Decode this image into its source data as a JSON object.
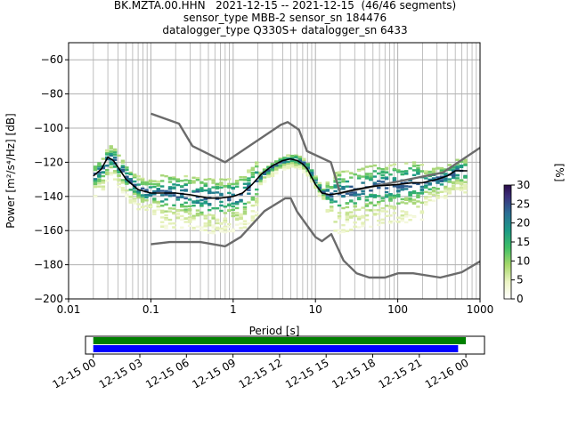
{
  "figure": {
    "title_lines": [
      "BK.MZTA.00.HHN   2021-12-15 -- 2021-12-15  (46/46 segments)",
      "sensor_type MBB-2 sensor_sn 184476",
      "datalogger_type Q330S+ datalogger_sn 6433"
    ]
  },
  "chart_data": [
    {
      "type": "heatmap",
      "title": "BK.MZTA.00.HHN   2021-12-15 -- 2021-12-15  (46/46 segments)",
      "xlabel": "Period [s]",
      "ylabel": "Power [m²/s⁴/Hz] [dB]",
      "xscale": "log",
      "xlim": [
        0.01,
        1000
      ],
      "ylim": [
        -200,
        -50
      ],
      "x_ticks": [
        "0.01",
        "0.1",
        "1",
        "10",
        "100",
        "1000"
      ],
      "y_ticks": [
        "−200",
        "−180",
        "−160",
        "−140",
        "−120",
        "−100",
        "−80",
        "−60"
      ],
      "y_tick_values": [
        -200,
        -180,
        -160,
        -140,
        -120,
        -100,
        -80,
        -60
      ],
      "grid": true,
      "colorbar": {
        "label": "[%]",
        "range": [
          0,
          30
        ],
        "ticks": [
          "0",
          "5",
          "10",
          "15",
          "20",
          "25",
          "30"
        ]
      },
      "series": [
        {
          "role": "mode",
          "x": [
            0.02,
            0.025,
            0.03,
            0.035,
            0.04,
            0.05,
            0.07,
            0.1,
            0.15,
            0.2,
            0.3,
            0.5,
            0.7,
            1,
            1.3,
            1.7,
            2.2,
            3,
            4,
            5,
            6,
            7,
            8,
            10,
            12,
            15,
            20,
            30,
            50,
            100,
            150,
            200,
            300,
            400,
            500,
            700
          ],
          "y": [
            -128,
            -124,
            -117,
            -119,
            -123,
            -130,
            -136,
            -138,
            -138,
            -138,
            -139,
            -141,
            -141,
            -140,
            -138,
            -133,
            -127,
            -122,
            -119,
            -118,
            -119,
            -121,
            -124,
            -133,
            -138,
            -139,
            -138,
            -136,
            -134,
            -133,
            -132,
            -132,
            -130,
            -128,
            -125,
            -125
          ]
        },
        {
          "role": "high-noise-model",
          "x": [
            0.1,
            0.22,
            0.32,
            0.8,
            3.8,
            4.6,
            6.3,
            7.9,
            15.4,
            20,
            354.8,
            1000
          ],
          "y": [
            -91.5,
            -97.4,
            -110.5,
            -120,
            -98,
            -96.5,
            -101,
            -113.5,
            -120,
            -138,
            -126,
            -111.5
          ]
        },
        {
          "role": "low-noise-model",
          "x": [
            0.1,
            0.17,
            0.4,
            0.8,
            1.24,
            2.4,
            4.3,
            5,
            6,
            10,
            12,
            15.6,
            21.9,
            31.6,
            45,
            70,
            101,
            154,
            328,
            600,
            1000
          ],
          "y": [
            -168,
            -166.7,
            -166.7,
            -169.2,
            -163.7,
            -148.6,
            -141.1,
            -141.1,
            -149,
            -163.8,
            -166.2,
            -162.1,
            -177.5,
            -185,
            -187.5,
            -187.5,
            -185,
            -185,
            -187.5,
            -184.4,
            -178
          ]
        }
      ]
    },
    {
      "type": "bar",
      "x_ticks": [
        "12-15 00",
        "12-15 03",
        "12-15 06",
        "12-15 09",
        "12-15 12",
        "12-15 15",
        "12-15 18",
        "12-15 21",
        "12-16 00"
      ],
      "xlim_hours": [
        -0.5,
        25.2
      ],
      "series": [
        {
          "role": "data-availability",
          "color": "#008000",
          "start_hour": 0,
          "end_hour": 24.0
        },
        {
          "role": "psd-coverage",
          "color": "#0000ff",
          "start_hour": 0,
          "end_hour": 23.5
        }
      ]
    }
  ]
}
